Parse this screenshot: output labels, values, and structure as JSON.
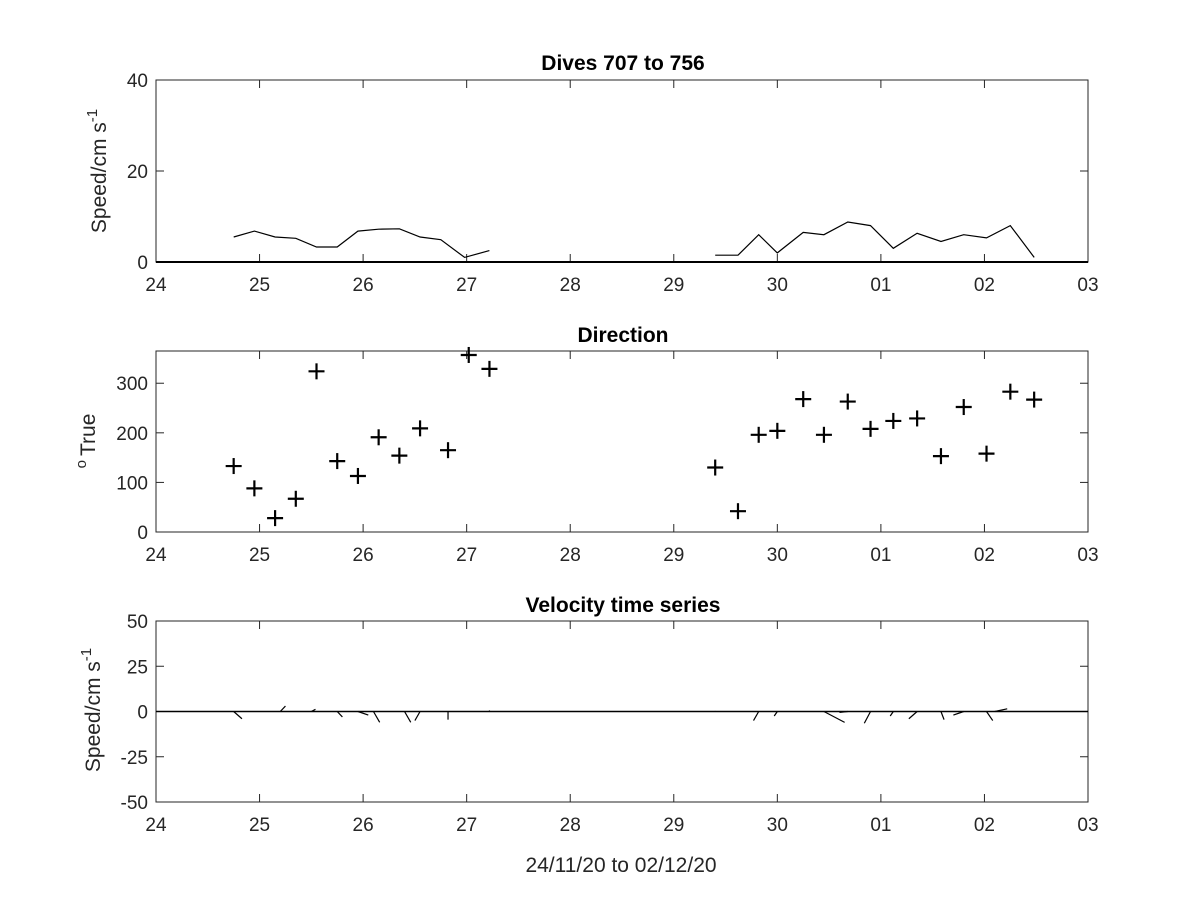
{
  "chart_data": [
    {
      "type": "line",
      "title": "Dives 707 to 756",
      "ylabel": "Speed/cm s",
      "ylabel_sup": "-1",
      "xlabel": "",
      "xlim": [
        0,
        9
      ],
      "xticks": [
        0,
        1,
        2,
        3,
        4,
        5,
        6,
        7,
        8,
        9
      ],
      "xtick_labels": [
        "24",
        "25",
        "26",
        "27",
        "28",
        "29",
        "30",
        "01",
        "02",
        "03"
      ],
      "ylim": [
        0,
        40
      ],
      "yticks": [
        0,
        20,
        40
      ],
      "ytick_labels": [
        "0",
        "20",
        "40"
      ],
      "color": "#000000",
      "series": [
        {
          "x": [
            0.75,
            0.95,
            1.15,
            1.35,
            1.55,
            1.75,
            1.95,
            2.15,
            2.35,
            2.55,
            2.75,
            2.98,
            3.22
          ],
          "y": [
            5.5,
            6.8,
            5.5,
            5.2,
            3.3,
            3.3,
            6.8,
            7.2,
            7.3,
            5.5,
            4.9,
            1.0,
            2.5
          ]
        },
        {
          "x": [
            5.4,
            5.62,
            5.82,
            6.0,
            6.25,
            6.45,
            6.68,
            6.9,
            7.12,
            7.35,
            7.58,
            7.8,
            8.02,
            8.25,
            8.48
          ],
          "y": [
            1.5,
            1.5,
            6.0,
            2.0,
            6.5,
            6.0,
            8.8,
            8.0,
            3.0,
            6.3,
            4.5,
            6.0,
            5.3,
            8.0,
            1.0
          ]
        },
        {
          "x": [
            0,
            9
          ],
          "y": [
            0,
            0
          ]
        }
      ]
    },
    {
      "type": "scatter",
      "title": "Direction",
      "ylabel": "True",
      "ylabel_pre": "o",
      "xlabel": "",
      "marker": "+",
      "xlim": [
        0,
        9
      ],
      "xticks": [
        0,
        1,
        2,
        3,
        4,
        5,
        6,
        7,
        8,
        9
      ],
      "xtick_labels": [
        "24",
        "25",
        "26",
        "27",
        "28",
        "29",
        "30",
        "01",
        "02",
        "03"
      ],
      "ylim": [
        0,
        365
      ],
      "yticks": [
        0,
        100,
        200,
        300
      ],
      "ytick_labels": [
        "0",
        "100",
        "200",
        "300"
      ],
      "x": [
        0.75,
        0.95,
        1.15,
        1.35,
        1.55,
        1.75,
        1.95,
        2.15,
        2.35,
        2.55,
        2.82,
        3.02,
        3.22,
        5.4,
        5.62,
        5.82,
        6.0,
        6.25,
        6.45,
        6.68,
        6.9,
        7.12,
        7.35,
        7.58,
        7.8,
        8.02,
        8.25,
        8.48
      ],
      "y": [
        133,
        88,
        28,
        67,
        324,
        143,
        113,
        191,
        154,
        209,
        165,
        357,
        329,
        130,
        42,
        196,
        204,
        268,
        196,
        263,
        208,
        224,
        229,
        153,
        252,
        158,
        283,
        267
      ]
    },
    {
      "type": "line",
      "title": "Velocity time series",
      "ylabel": "Speed/cm s",
      "ylabel_sup": "-1",
      "xlabel": "24/11/20 to 02/12/20",
      "xlim": [
        0,
        9
      ],
      "xticks": [
        0,
        1,
        2,
        3,
        4,
        5,
        6,
        7,
        8,
        9
      ],
      "xtick_labels": [
        "24",
        "25",
        "26",
        "27",
        "28",
        "29",
        "30",
        "01",
        "02",
        "03"
      ],
      "ylim": [
        -50,
        50
      ],
      "yticks": [
        -50,
        -25,
        0,
        25,
        50
      ],
      "ytick_labels": [
        "-50",
        "-25",
        "0",
        "25",
        "50"
      ],
      "color": "#000000",
      "baseline": 0,
      "vectors": [
        {
          "x": 0.75,
          "u": 0.08,
          "v": -4
        },
        {
          "x": 1.2,
          "u": 0.05,
          "v": 3
        },
        {
          "x": 1.5,
          "u": 0.04,
          "v": 1.2
        },
        {
          "x": 1.75,
          "u": 0.05,
          "v": -3
        },
        {
          "x": 1.95,
          "u": 0.1,
          "v": -2
        },
        {
          "x": 2.1,
          "u": 0.06,
          "v": -6
        },
        {
          "x": 2.4,
          "u": 0.06,
          "v": -6
        },
        {
          "x": 2.55,
          "u": -0.05,
          "v": -5
        },
        {
          "x": 2.82,
          "u": 0.0,
          "v": -4.5
        },
        {
          "x": 3.22,
          "u": 0.0,
          "v": 0.6
        },
        {
          "x": 5.4,
          "u": 0.0,
          "v": 0.3
        },
        {
          "x": 5.82,
          "u": -0.05,
          "v": -5
        },
        {
          "x": 6.0,
          "u": -0.03,
          "v": -2.5
        },
        {
          "x": 6.45,
          "u": 0.2,
          "v": -6
        },
        {
          "x": 6.68,
          "u": -0.08,
          "v": -0.5
        },
        {
          "x": 6.9,
          "u": -0.06,
          "v": -6.5
        },
        {
          "x": 7.12,
          "u": -0.03,
          "v": -2.5
        },
        {
          "x": 7.35,
          "u": -0.08,
          "v": -4
        },
        {
          "x": 7.58,
          "u": 0.03,
          "v": -4.5
        },
        {
          "x": 7.8,
          "u": -0.1,
          "v": -2
        },
        {
          "x": 8.02,
          "u": 0.06,
          "v": -5
        },
        {
          "x": 8.1,
          "u": 0.12,
          "v": 1.5
        }
      ]
    }
  ]
}
